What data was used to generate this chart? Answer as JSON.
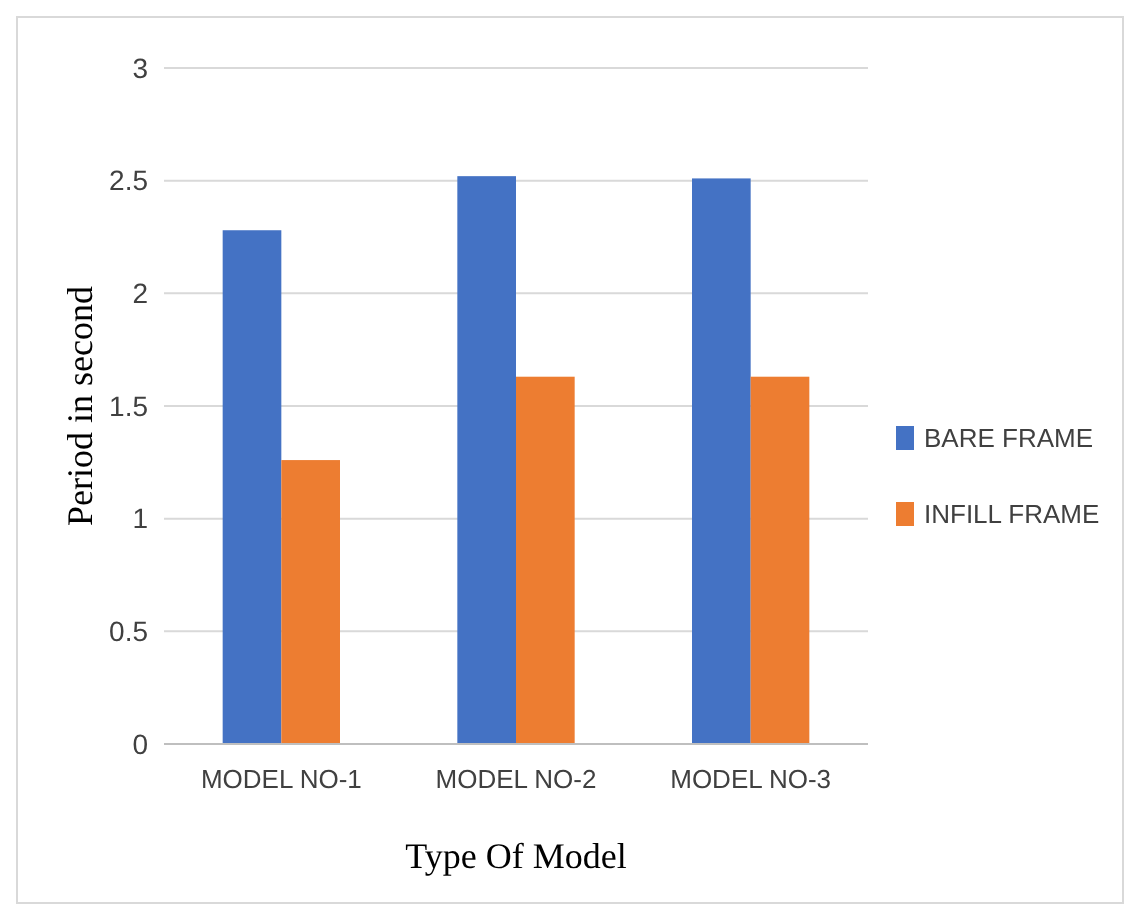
{
  "chart_data": {
    "type": "bar",
    "xlabel": "Type Of Model",
    "ylabel": "Period in second",
    "categories": [
      "MODEL NO-1",
      "MODEL NO-2",
      "MODEL NO-3"
    ],
    "series": [
      {
        "name": "BARE FRAME",
        "color": "#4472c4",
        "values": [
          2.28,
          2.52,
          2.51
        ]
      },
      {
        "name": "INFILL FRAME",
        "color": "#ed7d31",
        "values": [
          1.26,
          1.63,
          1.63
        ]
      }
    ],
    "ylim": [
      0,
      3
    ],
    "yticks": [
      0,
      0.5,
      1,
      1.5,
      2,
      2.5,
      3
    ],
    "grid": "y",
    "legend": "right"
  }
}
